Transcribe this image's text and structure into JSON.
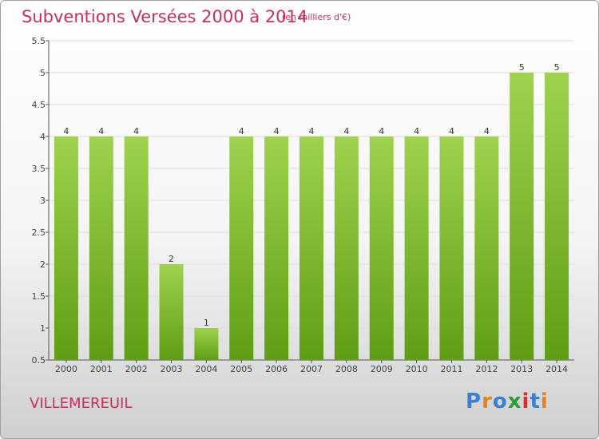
{
  "header": {
    "title": "Subventions Versées 2000 à 2014",
    "subtitle": "(en milliers d'€)"
  },
  "footer": {
    "city": "VILLEMEREUIL",
    "logo_text": "Proxiti",
    "logo_colors": [
      "#3a7fd0",
      "#e8821e",
      "#3a7fd0",
      "#2a9a3a",
      "#d83030",
      "#3a7fd0",
      "#e8821e"
    ]
  },
  "colors": {
    "title": "#c8305a",
    "bar_top": "#9fd24e",
    "bar_bottom": "#5e9e12",
    "grid": "#dddddd"
  },
  "chart_data": {
    "type": "bar",
    "categories": [
      "2000",
      "2001",
      "2002",
      "2003",
      "2004",
      "2005",
      "2006",
      "2007",
      "2008",
      "2009",
      "2010",
      "2011",
      "2012",
      "2013",
      "2014"
    ],
    "values": [
      4,
      4,
      4,
      2,
      1,
      4,
      4,
      4,
      4,
      4,
      4,
      4,
      4,
      5,
      5
    ],
    "data_labels": [
      "4",
      "4",
      "4",
      "2",
      "1",
      "4",
      "4",
      "4",
      "4",
      "4",
      "4",
      "4",
      "4",
      "5",
      "5"
    ],
    "yticks": [
      "0.5",
      "1",
      "1.5",
      "2",
      "2.5",
      "3",
      "3.5",
      "4",
      "4.5",
      "5",
      "5.5"
    ],
    "ylim": [
      0.5,
      5.5
    ],
    "grid": true,
    "legend": "none"
  }
}
